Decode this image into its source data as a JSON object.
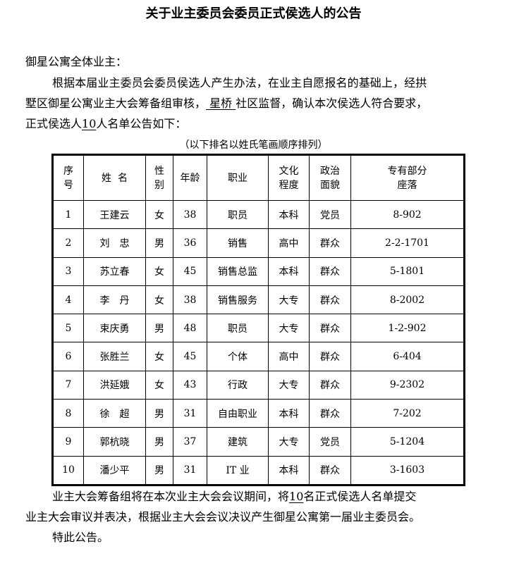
{
  "title": "关于业主委员会委员正式侯选人的公告",
  "salutation": "御星公寓全体业主：",
  "intro": {
    "line1": "根据本届业主委员会委员侯选人产生办法，在业主自愿报名的基础上，经拱",
    "line2_a": "墅区御星公寓业主大会筹备组审核，",
    "community": "星桥",
    "line2_b": "社区监督，确认本次侯选人符合要求，",
    "line3_a": "正式侯选人",
    "count": "10",
    "line3_b": "人名单公告如下："
  },
  "caption": "（以下排名以姓氏笔画顺序排列）",
  "table": {
    "headers": [
      [
        "序",
        "号"
      ],
      [
        "姓  名"
      ],
      [
        "性",
        "别"
      ],
      [
        "年龄"
      ],
      [
        "职业"
      ],
      [
        "文化",
        "程度"
      ],
      [
        "政治",
        "面貌"
      ],
      [
        "专有部分",
        "座落"
      ]
    ],
    "rows": [
      [
        "1",
        "王建云",
        "女",
        "38",
        "职员",
        "本科",
        "党员",
        "8-902"
      ],
      [
        "2",
        "刘　忠",
        "男",
        "36",
        "销售",
        "高中",
        "群众",
        "2-2-1701"
      ],
      [
        "3",
        "苏立春",
        "女",
        "45",
        "销售总监",
        "本科",
        "群众",
        "5-1801"
      ],
      [
        "4",
        "李　丹",
        "女",
        "38",
        "销售服务",
        "大专",
        "群众",
        "8-2002"
      ],
      [
        "5",
        "束庆勇",
        "男",
        "48",
        "职员",
        "大专",
        "群众",
        "1-2-902"
      ],
      [
        "6",
        "张胜兰",
        "女",
        "45",
        "个体",
        "高中",
        "群众",
        "6-404"
      ],
      [
        "7",
        "洪延娥",
        "女",
        "43",
        "行政",
        "大专",
        "群众",
        "9-2302"
      ],
      [
        "8",
        "徐　超",
        "男",
        "31",
        "自由职业",
        "本科",
        "群众",
        "7-202"
      ],
      [
        "9",
        "郭杭晓",
        "男",
        "37",
        "建筑",
        "大专",
        "党员",
        "5-1204"
      ],
      [
        "10",
        "潘少平",
        "男",
        "31",
        "IT 业",
        "本科",
        "群众",
        "3-1603"
      ]
    ]
  },
  "closing": {
    "line1_a": "业主大会筹备组将在本次业主大会会议期间，将",
    "count": "10",
    "line1_b": "名正式侯选人名单提交",
    "line2": "业主大会审议并表决，根据业主大会会议决议产生御星公寓第一届业主委员会。",
    "line3": "特此公告。"
  }
}
